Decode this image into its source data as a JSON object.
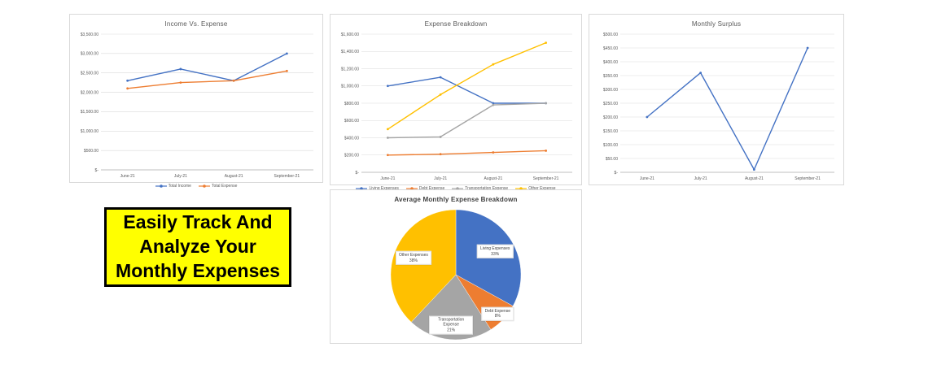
{
  "page": {
    "background": "#ffffff"
  },
  "banner": {
    "lines": [
      "Easily Track And",
      "Analyze Your",
      "Monthly Expenses"
    ],
    "bg_color": "#FFFF00",
    "border_color": "#000000"
  },
  "chart_data": [
    {
      "id": "income-vs-expense",
      "type": "line",
      "title": "Income Vs. Expense",
      "categories": [
        "June-21",
        "July-21",
        "August-21",
        "September-21"
      ],
      "series": [
        {
          "name": "Total Income",
          "color": "#4472C4",
          "values": [
            2300,
            2600,
            2300,
            3000
          ]
        },
        {
          "name": "Total Expense",
          "color": "#ED7D31",
          "values": [
            2100,
            2250,
            2300,
            2550
          ]
        }
      ],
      "ylim": [
        0,
        3500
      ],
      "ystep": 500,
      "ytick_labels": [
        "$-",
        "$500.00",
        "$1,000.00",
        "$1,500.00",
        "$2,000.00",
        "$2,500.00",
        "$3,000.00",
        "$3,500.00"
      ],
      "legend": true,
      "legend_position": "bottom",
      "grid": true
    },
    {
      "id": "expense-breakdown",
      "type": "line",
      "title": "Expense Breakdown",
      "categories": [
        "June-21",
        "July-21",
        "August-21",
        "September-21"
      ],
      "series": [
        {
          "name": "Living Expenses",
          "color": "#4472C4",
          "values": [
            1000,
            1100,
            800,
            800
          ]
        },
        {
          "name": "Debt Expense",
          "color": "#ED7D31",
          "values": [
            200,
            210,
            230,
            250
          ]
        },
        {
          "name": "Transportation Expense",
          "color": "#A5A5A5",
          "values": [
            400,
            410,
            780,
            800
          ]
        },
        {
          "name": "Other Expense",
          "color": "#FFC000",
          "values": [
            500,
            900,
            1250,
            1500
          ]
        }
      ],
      "ylim": [
        0,
        1600
      ],
      "ystep": 200,
      "ytick_labels": [
        "$-",
        "$200.00",
        "$400.00",
        "$600.00",
        "$800.00",
        "$1,000.00",
        "$1,200.00",
        "$1,400.00",
        "$1,600.00"
      ],
      "legend": true,
      "legend_position": "bottom",
      "grid": true
    },
    {
      "id": "monthly-surplus",
      "type": "line",
      "title": "Monthly Surplus",
      "categories": [
        "June-21",
        "July-21",
        "August-21",
        "September-21"
      ],
      "series": [
        {
          "name": "Monthly Surplus",
          "color": "#4472C4",
          "values": [
            200,
            360,
            10,
            450
          ]
        }
      ],
      "ylim": [
        0,
        500
      ],
      "ystep": 50,
      "ytick_labels": [
        "$-",
        "$50.00",
        "$100.00",
        "$150.00",
        "$200.00",
        "$250.00",
        "$300.00",
        "$350.00",
        "$400.00",
        "$450.00",
        "$500.00"
      ],
      "legend": false,
      "grid": true
    },
    {
      "id": "avg-monthly-expense-breakdown",
      "type": "pie",
      "title": "Average Monthly Expense Breakdown",
      "slices": [
        {
          "label": "Living Expenses",
          "pct": 33,
          "color": "#4472C4"
        },
        {
          "label": "Debt Expense",
          "pct": 8,
          "color": "#ED7D31"
        },
        {
          "label": "Transportation Expense",
          "pct": 21,
          "color": "#A5A5A5"
        },
        {
          "label": "Other Expenses",
          "pct": 38,
          "color": "#FFC000"
        }
      ]
    }
  ]
}
